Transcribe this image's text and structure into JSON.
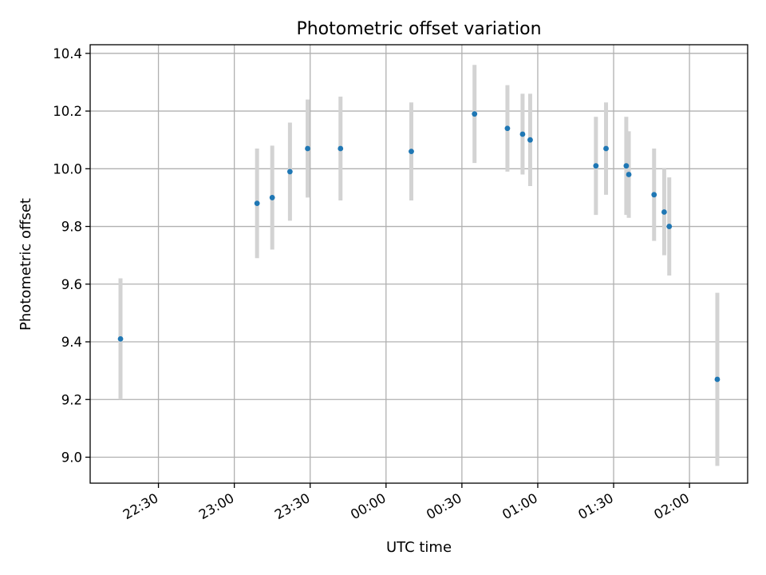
{
  "chart_data": {
    "type": "scatter",
    "title": "Photometric offset variation",
    "xlabel": "UTC time",
    "ylabel": "Photometric offset",
    "x_tick_labels": [
      "22:30",
      "23:00",
      "23:30",
      "00:00",
      "00:30",
      "01:00",
      "01:30",
      "02:00"
    ],
    "y_tick_labels": [
      "9.0",
      "9.2",
      "9.4",
      "9.6",
      "9.8",
      "10.0",
      "10.2",
      "10.4"
    ],
    "xlim": [
      "22:03",
      "02:23"
    ],
    "ylim": [
      8.91,
      10.43
    ],
    "grid": true,
    "colors": {
      "point": "#1f77b4",
      "errorbar": "#d3d3d3",
      "grid": "#b0b0b0"
    },
    "series": [
      {
        "points": [
          {
            "x": "22:15",
            "y": 9.41,
            "yerr": 0.21
          },
          {
            "x": "23:09",
            "y": 9.88,
            "yerr": 0.19
          },
          {
            "x": "23:15",
            "y": 9.9,
            "yerr": 0.18
          },
          {
            "x": "23:22",
            "y": 9.99,
            "yerr": 0.17
          },
          {
            "x": "23:29",
            "y": 10.07,
            "yerr": 0.17
          },
          {
            "x": "23:42",
            "y": 10.07,
            "yerr": 0.18
          },
          {
            "x": "00:10",
            "y": 10.06,
            "yerr": 0.17
          },
          {
            "x": "00:35",
            "y": 10.19,
            "yerr": 0.17
          },
          {
            "x": "00:48",
            "y": 10.14,
            "yerr": 0.15
          },
          {
            "x": "00:54",
            "y": 10.12,
            "yerr": 0.14
          },
          {
            "x": "00:57",
            "y": 10.1,
            "yerr": 0.16
          },
          {
            "x": "01:23",
            "y": 10.01,
            "yerr": 0.17
          },
          {
            "x": "01:27",
            "y": 10.07,
            "yerr": 0.16
          },
          {
            "x": "01:35",
            "y": 10.01,
            "yerr": 0.17
          },
          {
            "x": "01:36",
            "y": 9.98,
            "yerr": 0.15
          },
          {
            "x": "01:46",
            "y": 9.91,
            "yerr": 0.16
          },
          {
            "x": "01:50",
            "y": 9.85,
            "yerr": 0.15
          },
          {
            "x": "01:52",
            "y": 9.8,
            "yerr": 0.17
          },
          {
            "x": "02:11",
            "y": 9.27,
            "yerr": 0.3
          }
        ]
      }
    ]
  }
}
